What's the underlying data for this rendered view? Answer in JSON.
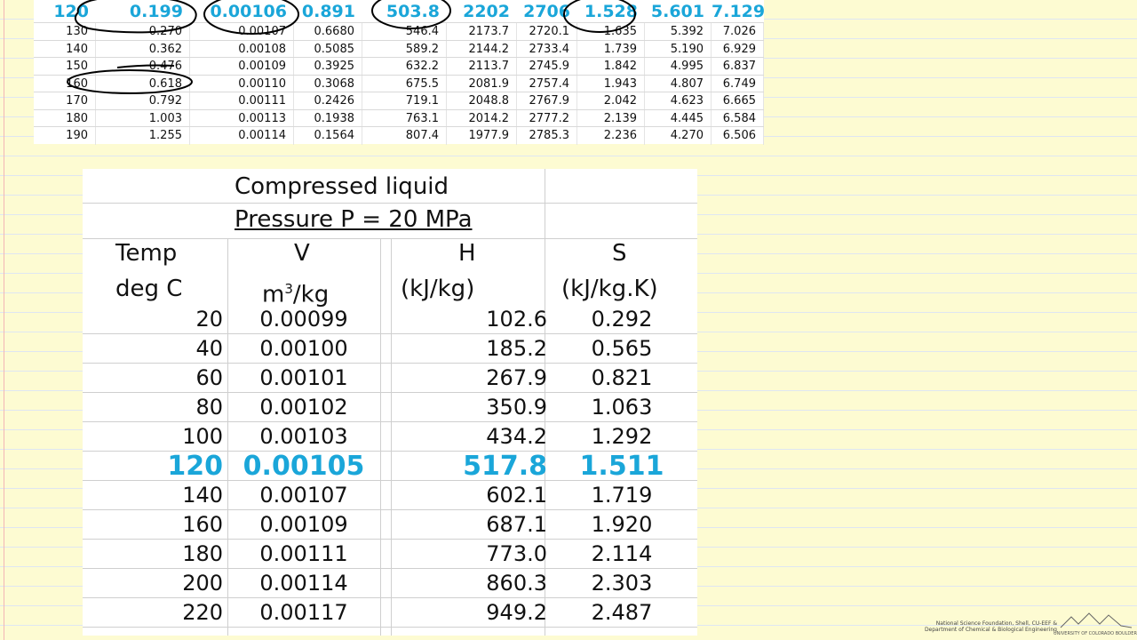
{
  "steam_table": {
    "highlight_row": [
      "120",
      "0.199",
      "0.00106",
      "0.891",
      "503.8",
      "2202",
      "2706",
      "1.528",
      "5.601",
      "7.129"
    ],
    "rows": [
      [
        "130",
        "0.270",
        "0.00107",
        "0.6680",
        "546.4",
        "2173.7",
        "2720.1",
        "1.635",
        "5.392",
        "7.026"
      ],
      [
        "140",
        "0.362",
        "0.00108",
        "0.5085",
        "589.2",
        "2144.2",
        "2733.4",
        "1.739",
        "5.190",
        "6.929"
      ],
      [
        "150",
        "0.476",
        "0.00109",
        "0.3925",
        "632.2",
        "2113.7",
        "2745.9",
        "1.842",
        "4.995",
        "6.837"
      ],
      [
        "160",
        "0.618",
        "0.00110",
        "0.3068",
        "675.5",
        "2081.9",
        "2757.4",
        "1.943",
        "4.807",
        "6.749"
      ],
      [
        "170",
        "0.792",
        "0.00111",
        "0.2426",
        "719.1",
        "2048.8",
        "2767.9",
        "2.042",
        "4.623",
        "6.665"
      ],
      [
        "180",
        "1.003",
        "0.00113",
        "0.1938",
        "763.1",
        "2014.2",
        "2777.2",
        "2.139",
        "4.445",
        "6.584"
      ],
      [
        "190",
        "1.255",
        "0.00114",
        "0.1564",
        "807.4",
        "1977.9",
        "2785.3",
        "2.236",
        "4.270",
        "6.506"
      ]
    ]
  },
  "compressed_liquid": {
    "title": "Compressed liquid",
    "pressure_label": "Pressure P = 20 MPa",
    "headers": {
      "temp": "Temp",
      "temp_unit": "deg C",
      "v": "V",
      "v_unit_m": "m",
      "v_unit_sup": "3",
      "v_unit_rest": "/kg",
      "h": "H",
      "h_unit": "(kJ/kg)",
      "s": "S",
      "s_unit": "(kJ/kg.K)"
    },
    "rows": [
      [
        "20",
        "0.00099",
        "102.6",
        "0.292"
      ],
      [
        "40",
        "0.00100",
        "185.2",
        "0.565"
      ],
      [
        "60",
        "0.00101",
        "267.9",
        "0.821"
      ],
      [
        "80",
        "0.00102",
        "350.9",
        "1.063"
      ],
      [
        "100",
        "0.00103",
        "434.2",
        "1.292"
      ],
      [
        "120",
        "0.00105",
        "517.8",
        "1.511"
      ],
      [
        "140",
        "0.00107",
        "602.1",
        "1.719"
      ],
      [
        "160",
        "0.00109",
        "687.1",
        "1.920"
      ],
      [
        "180",
        "0.00111",
        "773.0",
        "2.114"
      ],
      [
        "200",
        "0.00114",
        "860.3",
        "2.303"
      ],
      [
        "220",
        "0.00117",
        "949.2",
        "2.487"
      ]
    ],
    "highlight_index": 5
  },
  "credits": {
    "line1": "National Science Foundation, Shell, CU-EEF &",
    "line2": "Department of Chemical & Biological Engineering",
    "university": "UNIVERSITY OF COLORADO BOULDER"
  },
  "colors": {
    "highlight": "#1aa6d9",
    "paper": "#fdfbd2",
    "ink": "#000000"
  }
}
